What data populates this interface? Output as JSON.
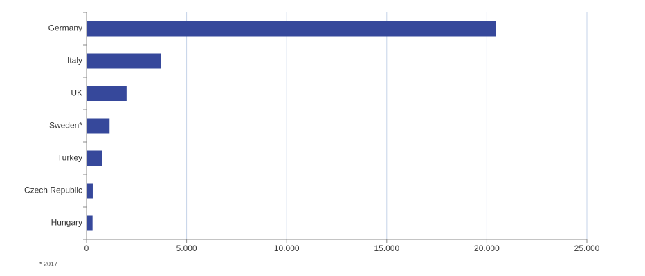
{
  "chart_data": {
    "type": "bar",
    "orientation": "horizontal",
    "categories": [
      "Germany",
      "Italy",
      "UK",
      "Sweden*",
      "Turkey",
      "Czech Republic",
      "Hungary"
    ],
    "values": [
      20450,
      3700,
      2000,
      1150,
      770,
      310,
      300
    ],
    "color": "#36489b",
    "xlim": [
      0,
      25000
    ],
    "xticks": [
      0,
      {
        "value": 5000,
        "label": "5.000"
      },
      {
        "value": 10000,
        "label": "10.000"
      },
      {
        "value": 15000,
        "label": "15.000"
      },
      {
        "value": 20000,
        "label": "20.000"
      },
      {
        "value": 25000,
        "label": "25.000"
      }
    ],
    "grid": true,
    "footnote": "* 2017"
  }
}
